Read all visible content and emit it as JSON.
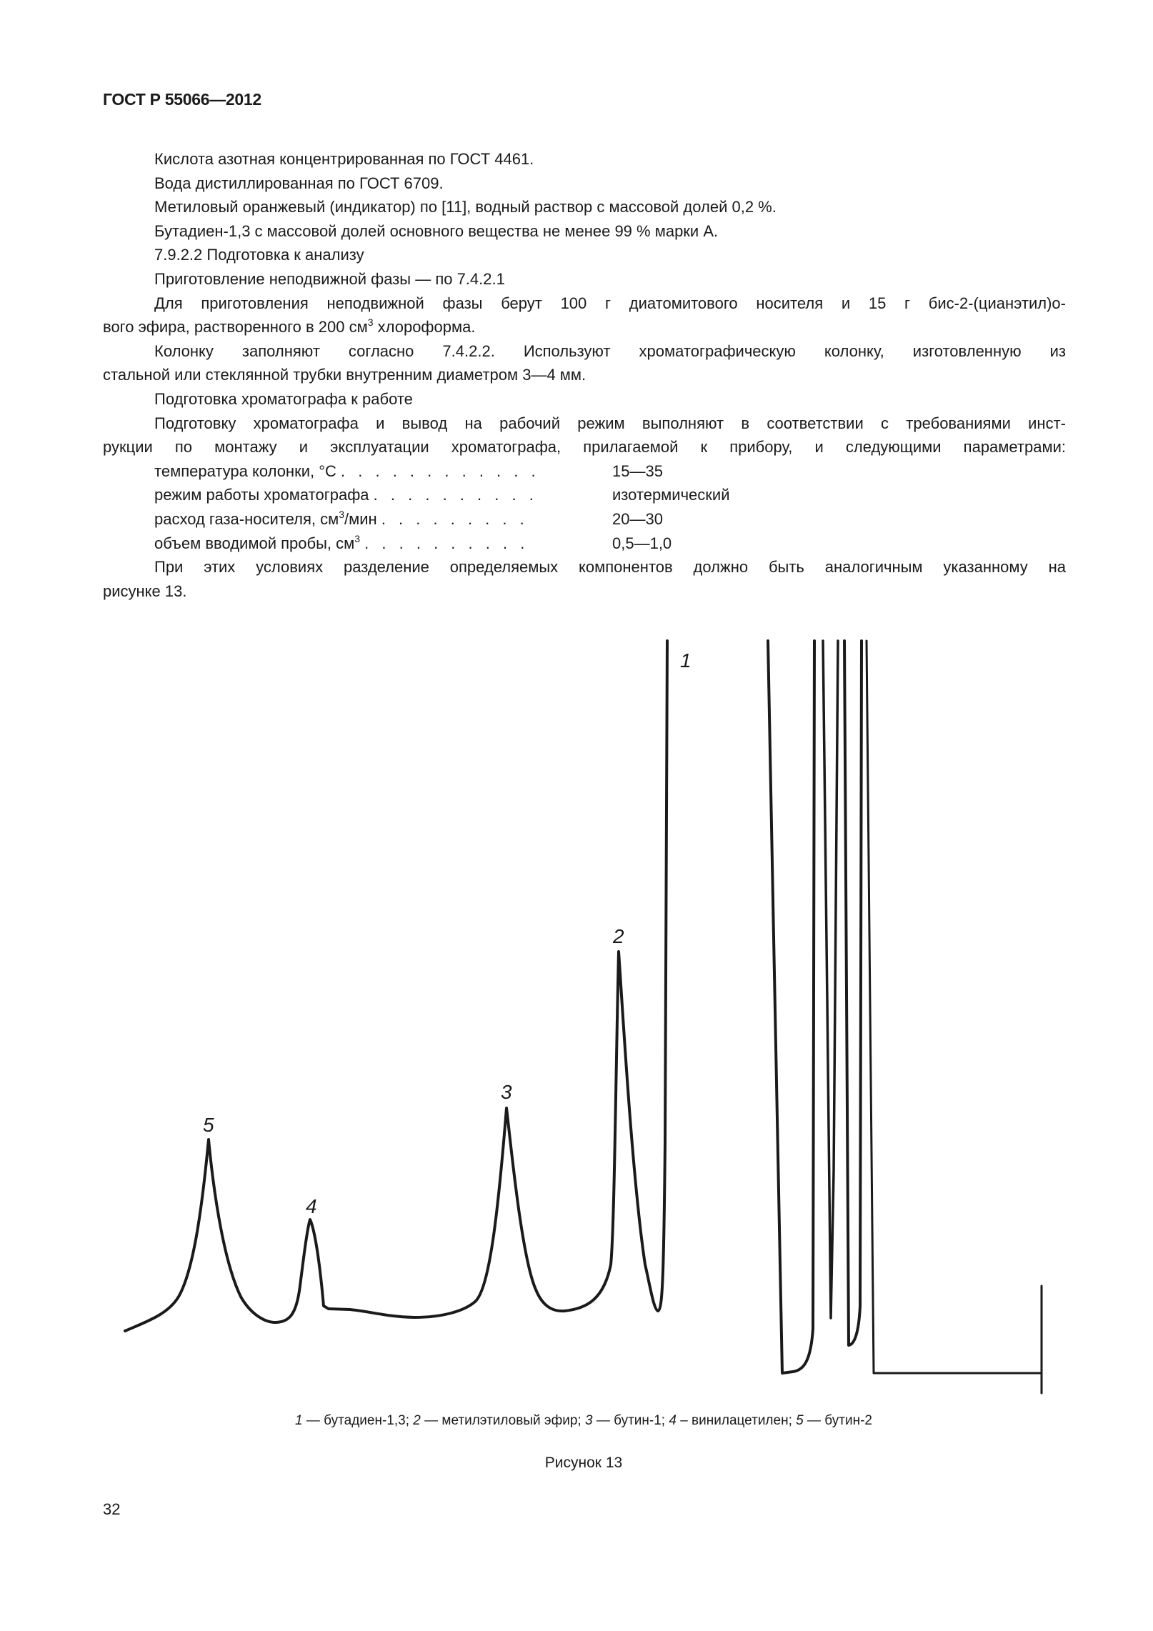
{
  "header": {
    "doc_id": "ГОСТ Р 55066—2012"
  },
  "body": {
    "l1": "Кислота азотная концентрированная по ГОСТ 4461.",
    "l2": "Вода дистиллированная по ГОСТ 6709.",
    "l3": "Метиловый оранжевый (индикатор) по [11], водный раствор с массовой долей 0,2 %.",
    "l4": "Бутадиен-1,3 с массовой долей основного вещества не менее 99 % марки А.",
    "l5": "7.9.2.2 Подготовка к анализу",
    "l6": "Приготовление неподвижной фазы — по 7.4.2.1",
    "l7": "Для приготовления неподвижной фазы берут 100 г диатомитового носителя  и 15 г бис-2-(цианэтил)о-",
    "l8a": "вого эфира, растворенного в 200 см",
    "l8sup": "3",
    "l8b": " хлороформа.",
    "l9": "Колонку заполняют согласно 7.4.2.2. Используют хроматографическую колонку, изготовленную из",
    "l10": "стальной или стеклянной трубки внутренним диаметром 3—4 мм.",
    "l11": "Подготовка хроматографа к работе",
    "l12": "Подготовку хроматографа и вывод на рабочий режим выполняют в соответствии с требованиями инст-",
    "l13": "рукции по монтажу и эксплуатации хроматографа, прилагаемой к прибору, и следующими параметрами:",
    "params": [
      {
        "label": "температура колонки, °С",
        "sup": "",
        "label_tail": "",
        "dots": ". . . . . . . . . . . .",
        "value": "15—35"
      },
      {
        "label": "режим работы хроматографа",
        "sup": "",
        "label_tail": "",
        "dots": ". . . . . . . . . .",
        "value": "изотермический"
      },
      {
        "label": "расход газа-носителя, см",
        "sup": "3",
        "label_tail": "/мин",
        "dots": ". . . . . . . . .",
        "value": "20—30"
      },
      {
        "label": "объем вводимой  пробы, см",
        "sup": "3",
        "label_tail": "",
        "dots": ". . . . . . . . . .",
        "value": "0,5—1,0"
      }
    ],
    "l14": "При этих условиях разделение определяемых компонентов должно быть аналогичным указанному на",
    "l15": "рисунке 13."
  },
  "figure": {
    "peak_labels": [
      "1",
      "2",
      "3",
      "4",
      "5"
    ],
    "legend": [
      {
        "num": "1",
        "text": " — бутадиен-1,3"
      },
      {
        "num": "2",
        "text": " — метилэтиловый эфир"
      },
      {
        "num": "3",
        "text": " — бутин-1"
      },
      {
        "num": "4",
        "text": " – винилацетилен"
      },
      {
        "num": "5",
        "text": " — бутин-2"
      }
    ],
    "separator": "; ",
    "caption": "Рисунок 13"
  },
  "footer": {
    "page_number": "32"
  }
}
